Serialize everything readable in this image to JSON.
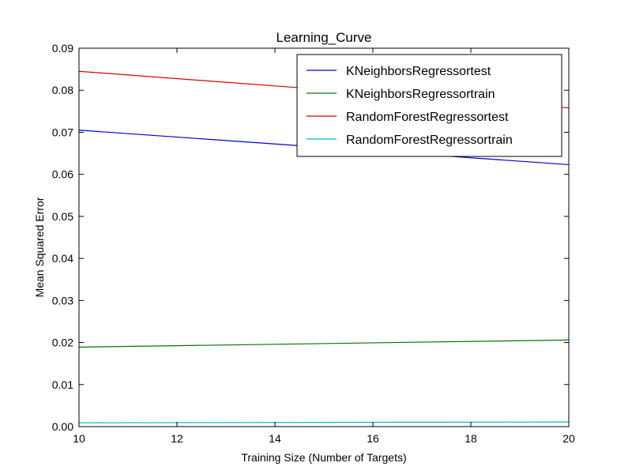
{
  "chart_data": {
    "type": "line",
    "title": "Learning_Curve",
    "xlabel": "Training Size (Number of Targets)",
    "ylabel": "Mean Squared Error",
    "xlim": [
      10,
      20
    ],
    "ylim": [
      0,
      0.09
    ],
    "xticks": [
      10,
      12,
      14,
      16,
      18,
      20
    ],
    "xtick_labels": [
      "10",
      "12",
      "14",
      "16",
      "18",
      "20"
    ],
    "yticks": [
      0,
      0.01,
      0.02,
      0.03,
      0.04,
      0.05,
      0.06,
      0.07,
      0.08,
      0.09
    ],
    "ytick_labels": [
      "0.00",
      "0.01",
      "0.02",
      "0.03",
      "0.04",
      "0.05",
      "0.06",
      "0.07",
      "0.08",
      "0.09"
    ],
    "grid": false,
    "legend_position": "top-right",
    "series": [
      {
        "name": "KNeighborsRegressortest",
        "color": "#0000cc",
        "x": [
          10,
          20
        ],
        "y": [
          0.0705,
          0.0623
        ]
      },
      {
        "name": "KNeighborsRegressortrain",
        "color": "#007700",
        "x": [
          10,
          20
        ],
        "y": [
          0.0189,
          0.0206
        ]
      },
      {
        "name": "RandomForestRegressortest",
        "color": "#dd0000",
        "x": [
          10,
          20
        ],
        "y": [
          0.0845,
          0.0758
        ]
      },
      {
        "name": "RandomForestRegressortrain",
        "color": "#00bbbb",
        "x": [
          10,
          20
        ],
        "y": [
          0.0009,
          0.0011
        ]
      }
    ]
  }
}
